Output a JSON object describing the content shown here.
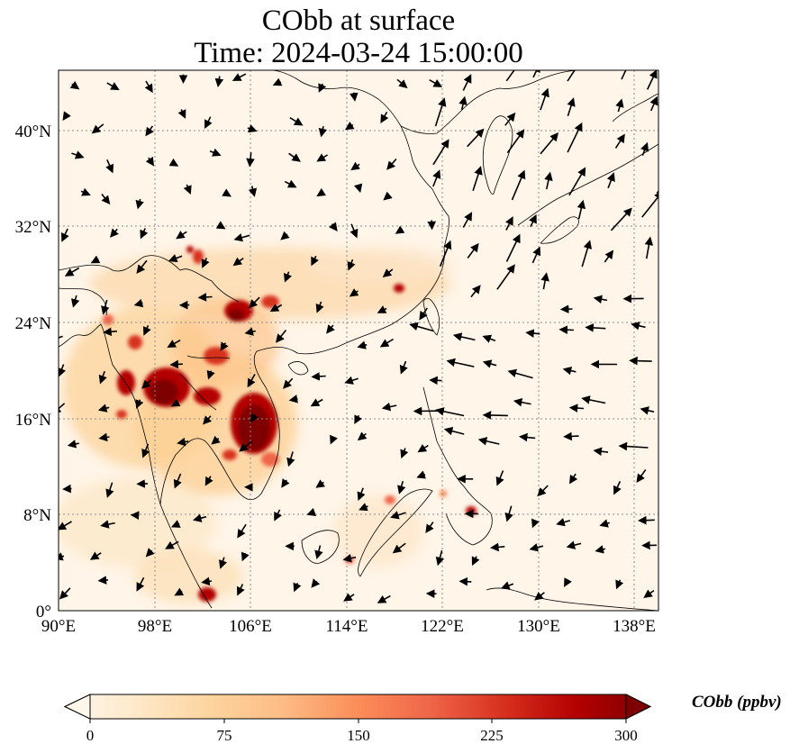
{
  "title": {
    "line1": "CObb at surface",
    "line2": "Time: 2024-03-24 15:00:00"
  },
  "map": {
    "lon_range": [
      90,
      140
    ],
    "lat_range": [
      0,
      45
    ],
    "lon_ticks": [
      "90°E",
      "98°E",
      "106°E",
      "114°E",
      "122°E",
      "130°E",
      "138°E"
    ],
    "lat_ticks": [
      "0°",
      "8°N",
      "16°N",
      "24°N",
      "32°N",
      "40°N"
    ],
    "lon_tick_values": [
      90,
      98,
      106,
      114,
      122,
      130,
      138
    ],
    "lat_tick_values": [
      0,
      8,
      16,
      24,
      32,
      40
    ],
    "gridlines": "dotted",
    "field_name": "CObb",
    "vectors": "wind arrows"
  },
  "colorbar": {
    "label": "CObb (ppbv)",
    "ticks": [
      "0",
      "75",
      "150",
      "225",
      "300"
    ],
    "tick_values": [
      0,
      75,
      150,
      225,
      300
    ],
    "range": [
      0,
      300
    ],
    "extend": "both",
    "colormap": "OrRd",
    "colors": [
      "#fff7ec",
      "#fee8c8",
      "#fdd49e",
      "#fdbb84",
      "#fc8d59",
      "#ef6548",
      "#d7301f",
      "#b30000",
      "#7f0000"
    ]
  }
}
